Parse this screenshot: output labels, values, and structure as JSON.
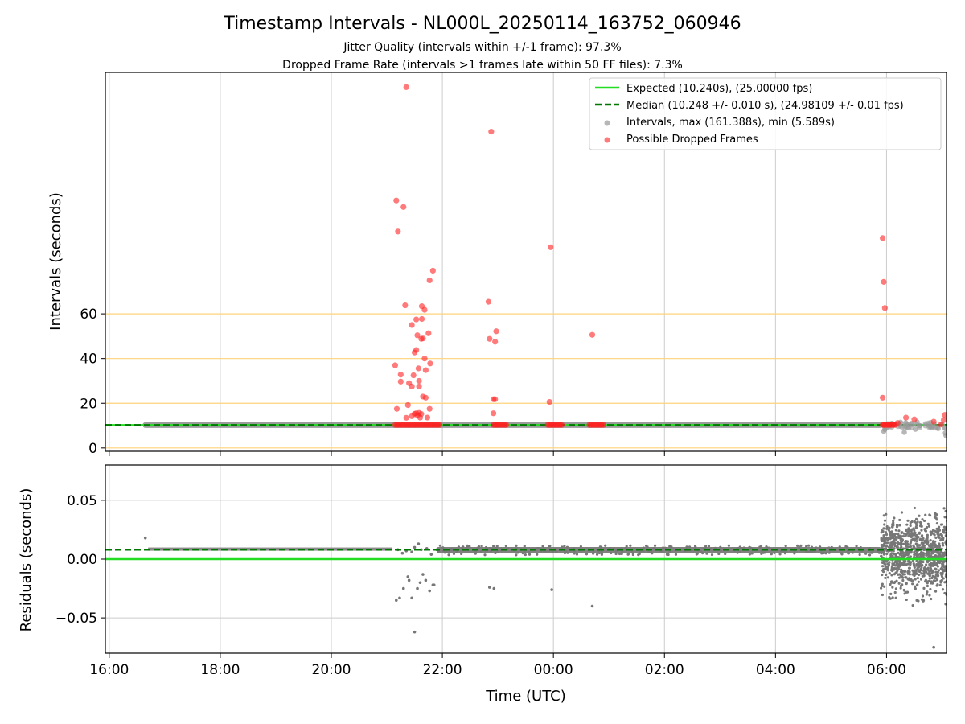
{
  "chart_data": {
    "title": "Timestamp Intervals - NL000L_20250114_163752_060946",
    "subtitle_lines": [
      "Jitter Quality (intervals within +/-1 frame): 97.3%",
      "Dropped Frame Rate (intervals >1 frames late within 50 FF files): 7.3%"
    ],
    "xlabel": "Time (UTC)",
    "x_ticks": [
      "16:00",
      "18:00",
      "20:00",
      "22:00",
      "00:00",
      "02:00",
      "04:00",
      "06:00"
    ],
    "xlim_hours": [
      15.93,
      31.08
    ],
    "panels": [
      {
        "type": "scatter",
        "ylabel": "Intervals (seconds)",
        "ylim": [
          -1.5,
          168
        ],
        "y_ticks": [
          0,
          20,
          40,
          60
        ],
        "hlines_orange": [
          0,
          20,
          40,
          60
        ],
        "expected": 10.24,
        "median": 10.248,
        "legend_position": "top-right",
        "legend": [
          {
            "label": "Expected (10.240s), (25.00000 fps)",
            "style": "solid",
            "color": "#22dd22"
          },
          {
            "label": "Median (10.248 +/- 0.010 s), (24.98109 +/- 0.01 fps)",
            "style": "dashed",
            "color": "#007700"
          },
          {
            "label": "Intervals, max (161.388s), min (5.589s)",
            "style": "dot",
            "color": "#999999"
          },
          {
            "label": "Possible Dropped Frames",
            "style": "dot",
            "color": "#ff2222"
          }
        ],
        "dropped_points": [
          [
            21.35,
            161.4
          ],
          [
            22.88,
            141.5
          ],
          [
            21.17,
            110.7
          ],
          [
            21.3,
            107.8
          ],
          [
            21.2,
            96.8
          ],
          [
            23.95,
            89.8
          ],
          [
            29.93,
            93.9
          ],
          [
            21.83,
            79.3
          ],
          [
            21.77,
            75.0
          ],
          [
            29.95,
            74.3
          ],
          [
            21.33,
            63.8
          ],
          [
            22.83,
            65.4
          ],
          [
            21.63,
            63.4
          ],
          [
            21.68,
            61.8
          ],
          [
            29.97,
            62.6
          ],
          [
            21.53,
            57.5
          ],
          [
            21.63,
            57.7
          ],
          [
            21.45,
            55.0
          ],
          [
            22.97,
            52.2
          ],
          [
            21.75,
            51.3
          ],
          [
            24.7,
            50.6
          ],
          [
            21.55,
            50.4
          ],
          [
            21.62,
            48.8
          ],
          [
            21.65,
            49.0
          ],
          [
            22.85,
            48.8
          ],
          [
            22.95,
            47.5
          ],
          [
            21.53,
            43.8
          ],
          [
            21.5,
            42.7
          ],
          [
            21.68,
            40.0
          ],
          [
            21.78,
            37.8
          ],
          [
            21.15,
            37.0
          ],
          [
            21.57,
            35.6
          ],
          [
            21.7,
            34.8
          ],
          [
            21.25,
            32.8
          ],
          [
            21.48,
            32.5
          ],
          [
            21.58,
            30.0
          ],
          [
            21.25,
            29.7
          ],
          [
            21.4,
            29.0
          ],
          [
            21.45,
            27.5
          ],
          [
            21.58,
            27.5
          ],
          [
            21.65,
            23.0
          ],
          [
            21.7,
            22.5
          ],
          [
            22.92,
            21.8
          ],
          [
            22.95,
            21.8
          ],
          [
            23.93,
            20.6
          ],
          [
            29.93,
            22.5
          ],
          [
            21.38,
            19.2
          ],
          [
            21.18,
            17.5
          ],
          [
            21.77,
            17.5
          ],
          [
            22.92,
            15.5
          ],
          [
            21.5,
            15.3
          ],
          [
            21.53,
            15.5
          ],
          [
            21.58,
            15.7
          ],
          [
            21.62,
            15.2
          ],
          [
            21.45,
            14.2
          ],
          [
            21.55,
            14.6
          ],
          [
            21.6,
            13.6
          ],
          [
            21.35,
            13.5
          ],
          [
            21.73,
            13.6
          ],
          [
            22.98,
            10.5
          ],
          [
            30.35,
            13.6
          ],
          [
            30.5,
            12.8
          ],
          [
            30.85,
            11.8
          ],
          [
            31.05,
            14.8
          ],
          [
            31.03,
            12.5
          ],
          [
            29.95,
            10.4
          ],
          [
            30.05,
            10.3
          ],
          [
            30.12,
            10.6
          ],
          [
            30.2,
            11.2
          ],
          [
            30.98,
            10.5
          ]
        ],
        "dropped_clusters": [
          [
            21.15,
            21.95
          ],
          [
            22.92,
            23.15
          ],
          [
            23.9,
            24.15
          ],
          [
            24.65,
            24.9
          ],
          [
            29.93,
            30.15
          ]
        ],
        "gray_points": [
          [
            29.95,
            7.5
          ],
          [
            29.97,
            8.3
          ],
          [
            30.0,
            9.0
          ],
          [
            30.4,
            9.0
          ],
          [
            30.45,
            11.0
          ],
          [
            30.52,
            8.4
          ],
          [
            30.6,
            10.0
          ],
          [
            30.88,
            9.0
          ],
          [
            30.93,
            8.7
          ],
          [
            31.0,
            10.6
          ],
          [
            31.06,
            6.7
          ],
          [
            30.32,
            7.0
          ],
          [
            30.1,
            11.0
          ],
          [
            30.78,
            9.6
          ],
          [
            30.22,
            10.6
          ],
          [
            31.07,
            5.6
          ],
          [
            30.7,
            10.8
          ],
          [
            30.55,
            11.6
          ]
        ]
      },
      {
        "type": "scatter",
        "ylabel": "Residuals (seconds)",
        "ylim": [
          -0.08,
          0.08
        ],
        "y_ticks": [
          0.05,
          0.0,
          -0.05
        ],
        "y_tick_labels": [
          "0.05",
          "0.00",
          "−0.05"
        ],
        "expected": 0.0,
        "median": 0.008,
        "outliers": [
          [
            16.65,
            0.018
          ],
          [
            21.17,
            -0.035
          ],
          [
            21.23,
            -0.033
          ],
          [
            21.3,
            -0.025
          ],
          [
            21.38,
            -0.015
          ],
          [
            21.4,
            -0.018
          ],
          [
            21.45,
            -0.033
          ],
          [
            21.5,
            -0.062
          ],
          [
            21.55,
            -0.025
          ],
          [
            21.6,
            -0.02
          ],
          [
            21.65,
            -0.013
          ],
          [
            21.7,
            -0.018
          ],
          [
            21.77,
            -0.027
          ],
          [
            21.83,
            -0.022
          ],
          [
            21.85,
            -0.022
          ],
          [
            21.57,
            0.013
          ],
          [
            21.5,
            0.01
          ],
          [
            22.85,
            -0.024
          ],
          [
            22.93,
            -0.025
          ],
          [
            23.97,
            -0.026
          ],
          [
            24.7,
            -0.04
          ],
          [
            21.2,
            0.008
          ],
          [
            21.28,
            0.005
          ],
          [
            21.35,
            0.007
          ],
          [
            21.45,
            0.006
          ],
          [
            21.62,
            0.008
          ],
          [
            21.72,
            0.009
          ],
          [
            21.8,
            0.004
          ],
          [
            21.9,
            0.008
          ],
          [
            30.85,
            -0.075
          ]
        ]
      }
    ]
  }
}
